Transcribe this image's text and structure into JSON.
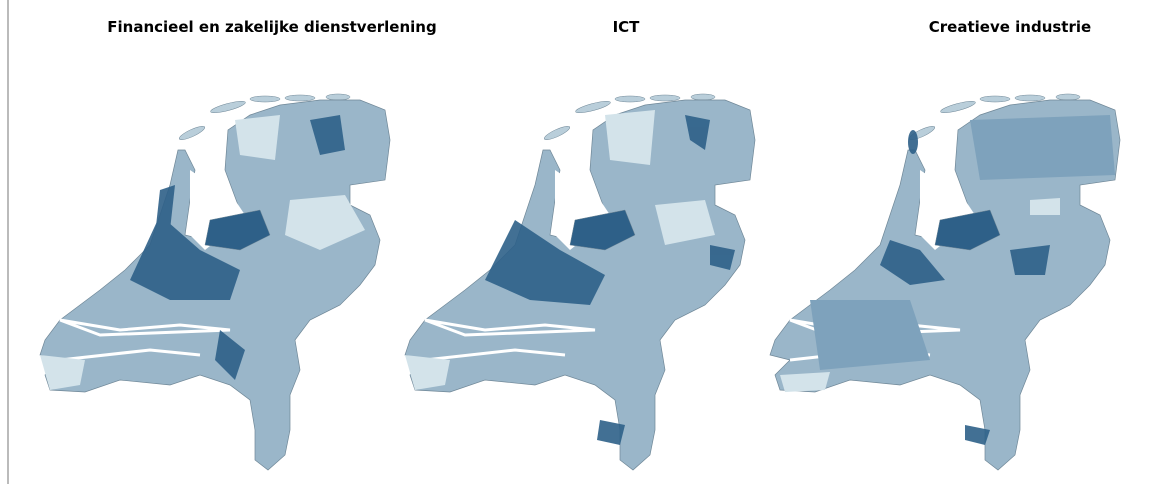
{
  "maps": [
    {
      "title": "Financieel en zakelijke dienstverlening"
    },
    {
      "title": "ICT"
    },
    {
      "title": "Creatieve industrie"
    }
  ]
}
